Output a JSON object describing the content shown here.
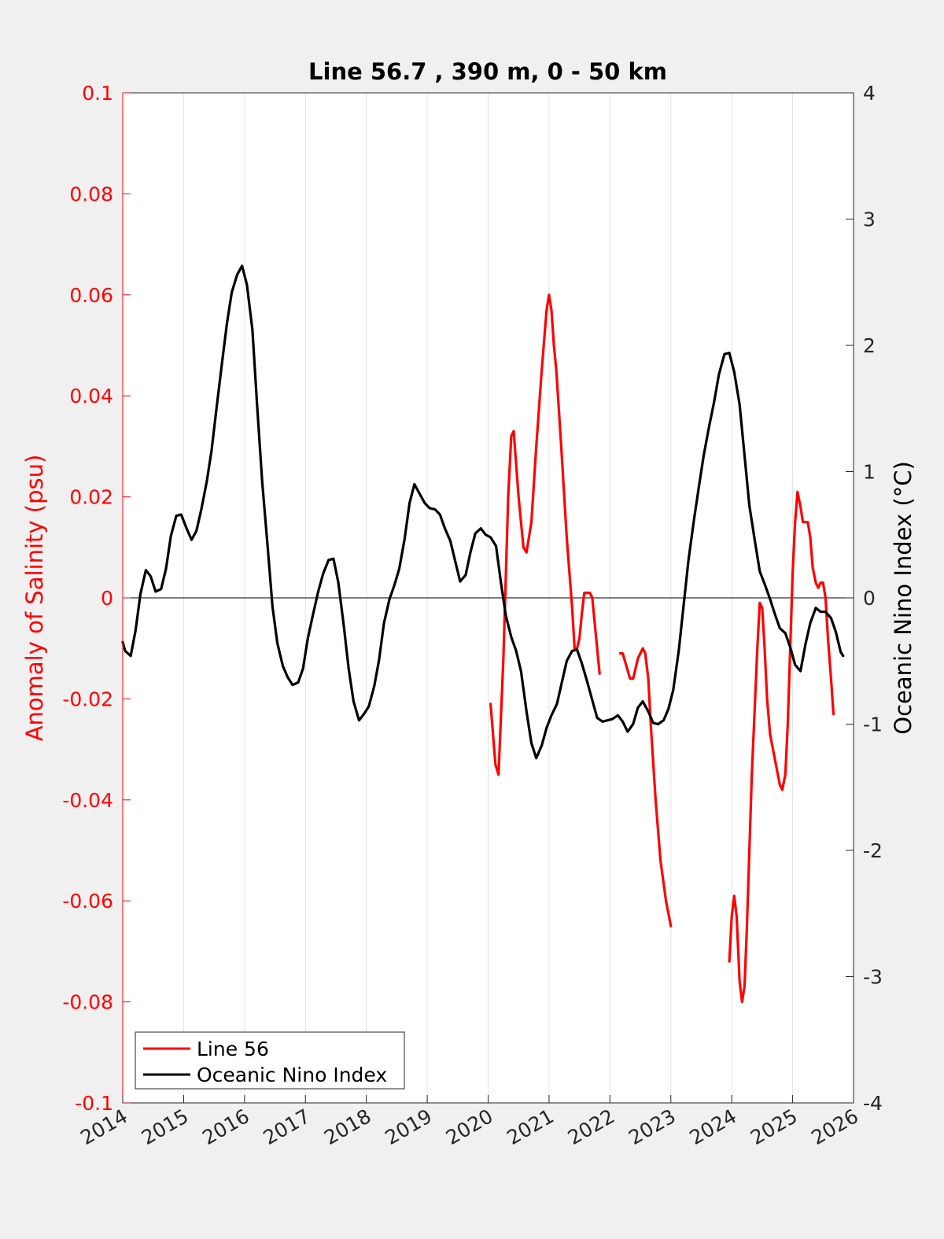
{
  "chart_data": {
    "type": "line",
    "title": "Line 56.7 , 390 m, 0 - 50 km",
    "xlabel": "",
    "ylabel_left": "Anomaly of Salinity (psu)",
    "ylabel_right": "Oceanic Nino Index (°C)",
    "xlim": [
      2014,
      2026
    ],
    "ylim_left": [
      -0.1,
      0.1
    ],
    "ylim_right": [
      -4,
      4
    ],
    "x_ticks": [
      "2014",
      "2015",
      "2016",
      "2017",
      "2018",
      "2019",
      "2020",
      "2021",
      "2022",
      "2023",
      "2024",
      "2025",
      "2026"
    ],
    "y_ticks_left": [
      "0.1",
      "0.08",
      "0.06",
      "0.04",
      "0.02",
      "0",
      "-0.02",
      "-0.04",
      "-0.06",
      "-0.08",
      "-0.1"
    ],
    "y_ticks_right": [
      "4",
      "3",
      "2",
      "1",
      "0",
      "-1",
      "-2",
      "-3",
      "-4"
    ],
    "grid": "vertical",
    "legend_position": "bottom-left",
    "colors": {
      "line56": "#ff0000",
      "oni": "#000000",
      "left_axis": "#ff0000",
      "right_axis": "#000000"
    },
    "series": [
      {
        "name": "Line 56",
        "axis": "left",
        "color": "#ff0000",
        "segments": [
          [
            [
              2020.04,
              -0.021
            ],
            [
              2020.12,
              -0.033
            ],
            [
              2020.17,
              -0.035
            ],
            [
              2020.25,
              -0.012
            ],
            [
              2020.33,
              0.02
            ],
            [
              2020.38,
              0.032
            ],
            [
              2020.42,
              0.033
            ],
            [
              2020.5,
              0.02
            ],
            [
              2020.58,
              0.01
            ],
            [
              2020.63,
              0.009
            ],
            [
              2020.71,
              0.015
            ],
            [
              2020.79,
              0.03
            ],
            [
              2020.88,
              0.045
            ],
            [
              2020.96,
              0.057
            ],
            [
              2021.0,
              0.06
            ],
            [
              2021.04,
              0.057
            ],
            [
              2021.08,
              0.05
            ],
            [
              2021.12,
              0.045
            ],
            [
              2021.2,
              0.03
            ],
            [
              2021.29,
              0.012
            ],
            [
              2021.38,
              -0.002
            ],
            [
              2021.42,
              -0.01
            ],
            [
              2021.46,
              -0.01
            ],
            [
              2021.5,
              -0.008
            ],
            [
              2021.54,
              -0.003
            ],
            [
              2021.58,
              0.001
            ],
            [
              2021.63,
              0.001
            ],
            [
              2021.67,
              0.001
            ],
            [
              2021.71,
              0.0
            ],
            [
              2021.79,
              -0.01
            ],
            [
              2021.83,
              -0.015
            ]
          ],
          [
            [
              2022.17,
              -0.011
            ],
            [
              2022.21,
              -0.011
            ],
            [
              2022.33,
              -0.016
            ],
            [
              2022.38,
              -0.016
            ],
            [
              2022.46,
              -0.012
            ],
            [
              2022.54,
              -0.01
            ],
            [
              2022.58,
              -0.011
            ],
            [
              2022.63,
              -0.016
            ],
            [
              2022.67,
              -0.025
            ],
            [
              2022.75,
              -0.04
            ],
            [
              2022.83,
              -0.052
            ],
            [
              2022.92,
              -0.06
            ],
            [
              2023.0,
              -0.065
            ]
          ],
          [
            [
              2023.96,
              -0.072
            ],
            [
              2024.0,
              -0.063
            ],
            [
              2024.04,
              -0.059
            ],
            [
              2024.08,
              -0.063
            ],
            [
              2024.13,
              -0.076
            ],
            [
              2024.17,
              -0.08
            ],
            [
              2024.21,
              -0.077
            ],
            [
              2024.25,
              -0.065
            ],
            [
              2024.33,
              -0.035
            ],
            [
              2024.42,
              -0.01
            ],
            [
              2024.46,
              -0.001
            ],
            [
              2024.5,
              -0.002
            ],
            [
              2024.54,
              -0.01
            ],
            [
              2024.58,
              -0.02
            ],
            [
              2024.63,
              -0.027
            ],
            [
              2024.71,
              -0.032
            ],
            [
              2024.79,
              -0.037
            ],
            [
              2024.83,
              -0.038
            ],
            [
              2024.88,
              -0.035
            ],
            [
              2024.92,
              -0.025
            ],
            [
              2024.96,
              -0.01
            ],
            [
              2025.0,
              0.005
            ],
            [
              2025.04,
              0.015
            ],
            [
              2025.08,
              0.021
            ],
            [
              2025.13,
              0.018
            ],
            [
              2025.17,
              0.015
            ],
            [
              2025.21,
              0.015
            ],
            [
              2025.25,
              0.015
            ],
            [
              2025.29,
              0.012
            ],
            [
              2025.33,
              0.006
            ],
            [
              2025.38,
              0.003
            ],
            [
              2025.42,
              0.002
            ],
            [
              2025.46,
              0.003
            ],
            [
              2025.5,
              0.003
            ],
            [
              2025.54,
              0.0
            ],
            [
              2025.58,
              -0.008
            ],
            [
              2025.63,
              -0.016
            ],
            [
              2025.67,
              -0.023
            ]
          ]
        ]
      },
      {
        "name": "Oceanic Nino Index",
        "axis": "right",
        "color": "#000000",
        "points": [
          [
            2014.0,
            -0.35
          ],
          [
            2014.04,
            -0.42
          ],
          [
            2014.13,
            -0.46
          ],
          [
            2014.21,
            -0.26
          ],
          [
            2014.29,
            0.03
          ],
          [
            2014.38,
            0.22
          ],
          [
            2014.46,
            0.17
          ],
          [
            2014.54,
            0.05
          ],
          [
            2014.63,
            0.07
          ],
          [
            2014.71,
            0.23
          ],
          [
            2014.79,
            0.49
          ],
          [
            2014.88,
            0.65
          ],
          [
            2014.96,
            0.66
          ],
          [
            2015.04,
            0.56
          ],
          [
            2015.13,
            0.46
          ],
          [
            2015.21,
            0.53
          ],
          [
            2015.29,
            0.7
          ],
          [
            2015.38,
            0.92
          ],
          [
            2015.46,
            1.17
          ],
          [
            2015.54,
            1.5
          ],
          [
            2015.63,
            1.86
          ],
          [
            2015.71,
            2.17
          ],
          [
            2015.79,
            2.42
          ],
          [
            2015.88,
            2.56
          ],
          [
            2015.96,
            2.63
          ],
          [
            2016.04,
            2.48
          ],
          [
            2016.13,
            2.12
          ],
          [
            2016.21,
            1.5
          ],
          [
            2016.29,
            0.92
          ],
          [
            2016.38,
            0.4
          ],
          [
            2016.46,
            -0.07
          ],
          [
            2016.54,
            -0.36
          ],
          [
            2016.63,
            -0.54
          ],
          [
            2016.71,
            -0.63
          ],
          [
            2016.79,
            -0.69
          ],
          [
            2016.88,
            -0.67
          ],
          [
            2016.96,
            -0.56
          ],
          [
            2017.04,
            -0.32
          ],
          [
            2017.13,
            -0.12
          ],
          [
            2017.21,
            0.05
          ],
          [
            2017.29,
            0.19
          ],
          [
            2017.38,
            0.3
          ],
          [
            2017.46,
            0.31
          ],
          [
            2017.54,
            0.12
          ],
          [
            2017.63,
            -0.22
          ],
          [
            2017.71,
            -0.56
          ],
          [
            2017.79,
            -0.82
          ],
          [
            2017.88,
            -0.97
          ],
          [
            2017.96,
            -0.92
          ],
          [
            2018.04,
            -0.86
          ],
          [
            2018.13,
            -0.7
          ],
          [
            2018.21,
            -0.49
          ],
          [
            2018.29,
            -0.2
          ],
          [
            2018.38,
            -0.01
          ],
          [
            2018.46,
            0.1
          ],
          [
            2018.54,
            0.23
          ],
          [
            2018.63,
            0.47
          ],
          [
            2018.71,
            0.75
          ],
          [
            2018.79,
            0.9
          ],
          [
            2018.88,
            0.82
          ],
          [
            2018.96,
            0.75
          ],
          [
            2019.04,
            0.71
          ],
          [
            2019.13,
            0.7
          ],
          [
            2019.21,
            0.66
          ],
          [
            2019.29,
            0.55
          ],
          [
            2019.38,
            0.45
          ],
          [
            2019.46,
            0.29
          ],
          [
            2019.54,
            0.13
          ],
          [
            2019.63,
            0.18
          ],
          [
            2019.71,
            0.36
          ],
          [
            2019.79,
            0.51
          ],
          [
            2019.88,
            0.55
          ],
          [
            2019.96,
            0.5
          ],
          [
            2020.04,
            0.48
          ],
          [
            2020.13,
            0.41
          ],
          [
            2020.21,
            0.12
          ],
          [
            2020.29,
            -0.14
          ],
          [
            2020.38,
            -0.31
          ],
          [
            2020.46,
            -0.42
          ],
          [
            2020.54,
            -0.58
          ],
          [
            2020.63,
            -0.9
          ],
          [
            2020.71,
            -1.15
          ],
          [
            2020.79,
            -1.27
          ],
          [
            2020.88,
            -1.17
          ],
          [
            2020.96,
            -1.03
          ],
          [
            2021.04,
            -0.93
          ],
          [
            2021.13,
            -0.84
          ],
          [
            2021.21,
            -0.67
          ],
          [
            2021.29,
            -0.5
          ],
          [
            2021.38,
            -0.42
          ],
          [
            2021.46,
            -0.41
          ],
          [
            2021.54,
            -0.52
          ],
          [
            2021.63,
            -0.67
          ],
          [
            2021.71,
            -0.81
          ],
          [
            2021.79,
            -0.95
          ],
          [
            2021.88,
            -0.98
          ],
          [
            2021.96,
            -0.97
          ],
          [
            2022.04,
            -0.96
          ],
          [
            2022.13,
            -0.93
          ],
          [
            2022.21,
            -0.98
          ],
          [
            2022.29,
            -1.06
          ],
          [
            2022.38,
            -1.0
          ],
          [
            2022.46,
            -0.87
          ],
          [
            2022.54,
            -0.82
          ],
          [
            2022.63,
            -0.9
          ],
          [
            2022.71,
            -0.99
          ],
          [
            2022.79,
            -1.0
          ],
          [
            2022.88,
            -0.97
          ],
          [
            2022.96,
            -0.88
          ],
          [
            2023.04,
            -0.73
          ],
          [
            2023.13,
            -0.42
          ],
          [
            2023.21,
            -0.06
          ],
          [
            2023.29,
            0.3
          ],
          [
            2023.38,
            0.62
          ],
          [
            2023.46,
            0.88
          ],
          [
            2023.54,
            1.13
          ],
          [
            2023.63,
            1.36
          ],
          [
            2023.71,
            1.55
          ],
          [
            2023.79,
            1.77
          ],
          [
            2023.88,
            1.93
          ],
          [
            2023.96,
            1.94
          ],
          [
            2024.04,
            1.79
          ],
          [
            2024.13,
            1.53
          ],
          [
            2024.21,
            1.13
          ],
          [
            2024.29,
            0.73
          ],
          [
            2024.38,
            0.45
          ],
          [
            2024.46,
            0.21
          ],
          [
            2024.54,
            0.11
          ],
          [
            2024.63,
            -0.01
          ],
          [
            2024.71,
            -0.13
          ],
          [
            2024.79,
            -0.24
          ],
          [
            2024.88,
            -0.28
          ],
          [
            2024.96,
            -0.39
          ],
          [
            2025.04,
            -0.53
          ],
          [
            2025.13,
            -0.58
          ],
          [
            2025.21,
            -0.37
          ],
          [
            2025.29,
            -0.2
          ],
          [
            2025.38,
            -0.08
          ],
          [
            2025.46,
            -0.11
          ],
          [
            2025.54,
            -0.11
          ],
          [
            2025.63,
            -0.16
          ],
          [
            2025.71,
            -0.27
          ],
          [
            2025.79,
            -0.43
          ],
          [
            2025.83,
            -0.46
          ]
        ]
      }
    ]
  }
}
